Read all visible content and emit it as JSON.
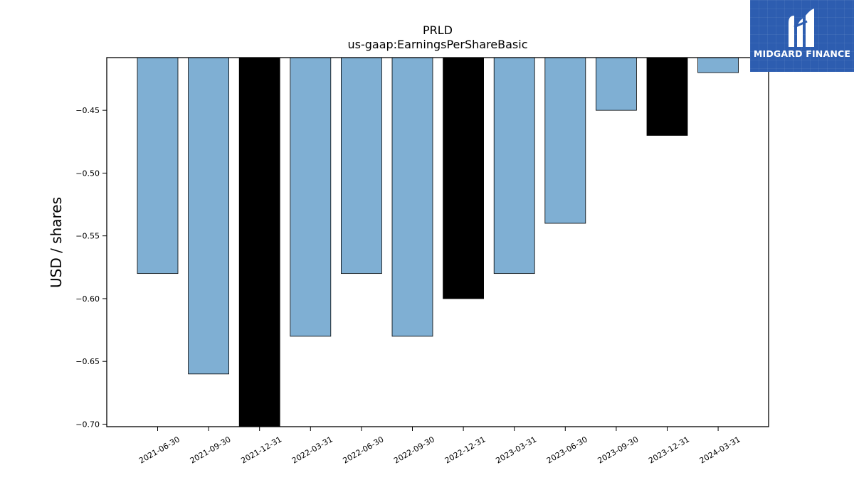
{
  "brand": {
    "name": "MIDGARD FINANCE",
    "color": "#2d5db0"
  },
  "chart_data": {
    "type": "bar",
    "title": "PRLD",
    "subtitle": "us-gaap:EarningsPerShareBasic",
    "xlabel": "",
    "ylabel": "USD / shares",
    "categories": [
      "2021-06-30",
      "2021-09-30",
      "2021-12-31",
      "2022-03-31",
      "2022-06-30",
      "2022-09-30",
      "2022-12-31",
      "2023-03-31",
      "2023-06-30",
      "2023-09-30",
      "2023-12-31",
      "2024-03-31"
    ],
    "values": [
      -0.58,
      -0.66,
      -0.71,
      -0.63,
      -0.58,
      -0.63,
      -0.6,
      -0.58,
      -0.54,
      -0.45,
      -0.47,
      -0.42
    ],
    "fiscal_year_end": [
      false,
      false,
      true,
      false,
      false,
      false,
      true,
      false,
      false,
      false,
      true,
      false
    ],
    "colors": {
      "quarter": "#7fafd3",
      "year_end": "#000000"
    },
    "ylim": [
      -0.702,
      -0.408
    ],
    "yticks": [
      -0.45,
      -0.5,
      -0.55,
      -0.6,
      -0.65,
      -0.7
    ],
    "ytick_labels": [
      "−0.45",
      "−0.50",
      "−0.55",
      "−0.60",
      "−0.65",
      "−0.70"
    ],
    "grid": false,
    "legend": "none"
  }
}
